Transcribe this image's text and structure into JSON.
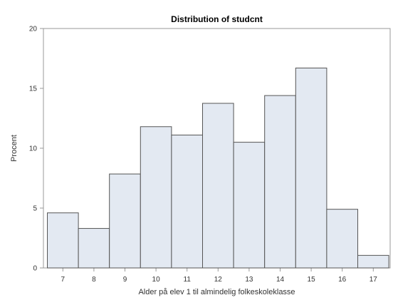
{
  "chart_data": {
    "type": "bar",
    "title": "Distribution of studcnt",
    "xlabel": "Alder på elev 1 til almindelig folkeskoleklasse",
    "ylabel": "Procent",
    "categories": [
      "7",
      "8",
      "9",
      "10",
      "11",
      "12",
      "13",
      "14",
      "15",
      "16",
      "17"
    ],
    "values": [
      4.6,
      3.3,
      7.85,
      11.8,
      11.1,
      13.75,
      10.5,
      14.4,
      16.7,
      4.9,
      1.05
    ],
    "ylim": [
      0,
      20
    ],
    "yticks": [
      0,
      5,
      10,
      15,
      20
    ],
    "grid": false,
    "colors": {
      "bar_fill": "#e3e9f2",
      "bar_stroke": "#555555",
      "frame": "#999999",
      "text": "#333333"
    }
  }
}
